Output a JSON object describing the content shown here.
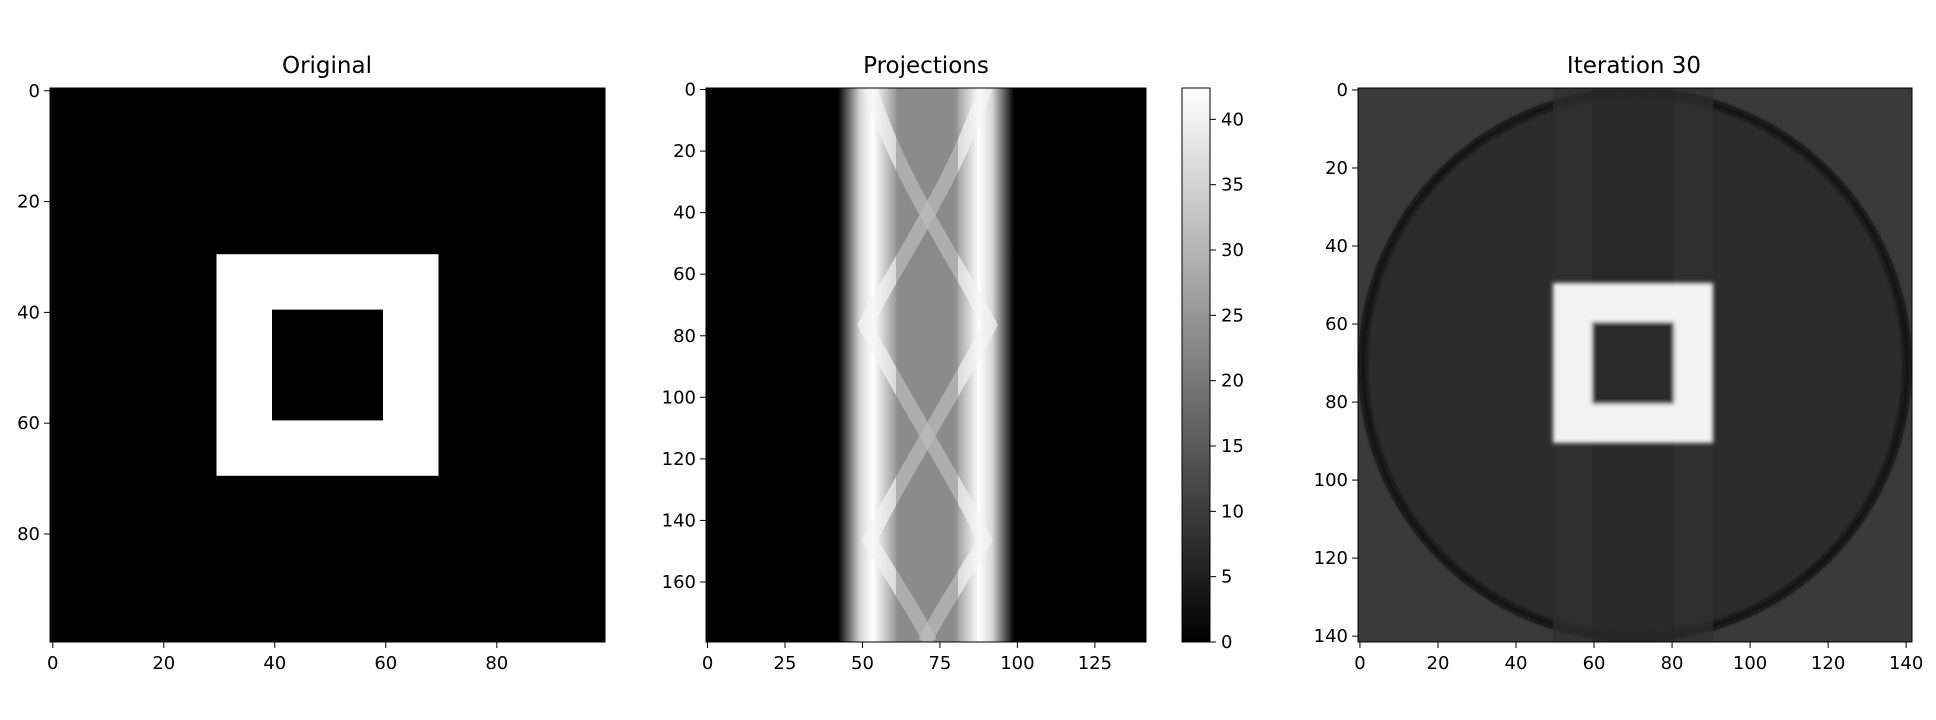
{
  "chart_data": [
    {
      "type": "heatmap",
      "title": "Original",
      "colormap": "gray",
      "xlim": [
        0,
        100
      ],
      "ylim": [
        100,
        0
      ],
      "x_ticks": [
        0,
        20,
        40,
        60,
        80
      ],
      "y_ticks": [
        0,
        20,
        40,
        60,
        80
      ],
      "image": {
        "shape": [
          100,
          100
        ],
        "background": 0,
        "regions": [
          {
            "shape": "rect",
            "x": [
              30,
              70
            ],
            "y": [
              30,
              70
            ],
            "value": 1
          },
          {
            "shape": "rect",
            "x": [
              40,
              60
            ],
            "y": [
              40,
              60
            ],
            "value": 0
          }
        ]
      }
    },
    {
      "type": "heatmap",
      "title": "Projections",
      "colormap": "gray",
      "xlim": [
        0,
        142
      ],
      "ylim": [
        180,
        0
      ],
      "x_ticks": [
        0,
        25,
        50,
        75,
        100,
        125
      ],
      "y_ticks": [
        0,
        20,
        40,
        60,
        80,
        100,
        120,
        140,
        160
      ],
      "colorbar": {
        "range": [
          0,
          42.4
        ],
        "ticks": [
          0,
          5,
          10,
          15,
          20,
          25,
          30,
          35,
          40
        ]
      },
      "image": {
        "shape": [
          180,
          142
        ],
        "description_values": "sinogram of the square ring; peak projection ≈ 42, inner band ≈ 20"
      }
    },
    {
      "type": "heatmap",
      "title": "Iteration 30",
      "colormap": "gray",
      "xlim": [
        0,
        142
      ],
      "ylim": [
        142,
        0
      ],
      "x_ticks": [
        0,
        20,
        40,
        60,
        80,
        100,
        120,
        140
      ],
      "y_ticks": [
        0,
        20,
        40,
        60,
        80,
        100,
        120,
        140
      ],
      "image": {
        "shape": [
          142,
          142
        ],
        "background": 0.2,
        "regions": [
          {
            "shape": "disk",
            "center": [
              71,
              71
            ],
            "radius": 71,
            "value": 0.2
          },
          {
            "shape": "rect",
            "x": [
              50,
              91
            ],
            "y": [
              50,
              91
            ],
            "value": 1
          },
          {
            "shape": "rect",
            "x": [
              60,
              81
            ],
            "y": [
              60,
              81
            ],
            "value": 0.2
          }
        ]
      }
    }
  ]
}
